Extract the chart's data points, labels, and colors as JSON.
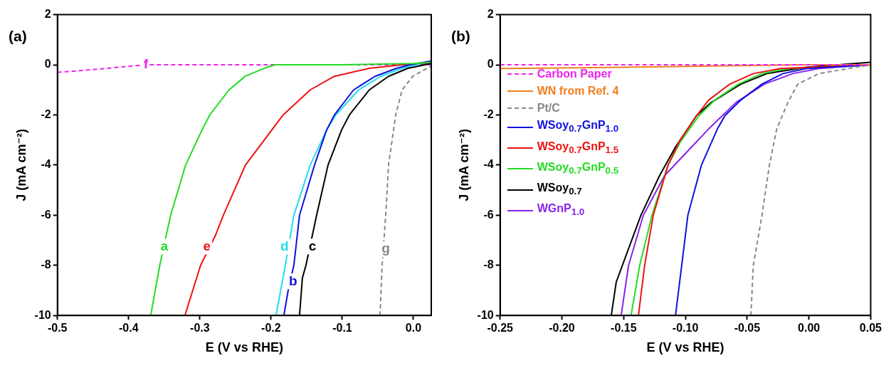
{
  "chart_data": [
    {
      "type": "line",
      "title": "(a)",
      "xlabel": "E (V vs RHE)",
      "ylabel": "J (mA cm⁻²)",
      "marker": "none",
      "xlim": [
        -0.5,
        0.025
      ],
      "ylim": [
        -10,
        2
      ],
      "xticks": [
        {
          "value": -0.5,
          "label": "-0.5"
        },
        {
          "value": -0.4,
          "label": "-0.4"
        },
        {
          "value": -0.3,
          "label": "-0.3"
        },
        {
          "value": -0.2,
          "label": "-0.2"
        },
        {
          "value": -0.1,
          "label": "-0.1"
        },
        {
          "value": 0,
          "label": "0.0"
        }
      ],
      "yticks": [
        2,
        0,
        -2,
        -4,
        -6,
        -8,
        -10
      ],
      "series": [
        {
          "color": "#22dd22",
          "x": [
            -0.369,
            -0.356,
            -0.341,
            -0.32,
            -0.297,
            -0.286,
            -0.259,
            -0.236,
            -0.206,
            -0.194,
            -0.1,
            0,
            0.025
          ],
          "values": [
            -10,
            -7.95,
            -6,
            -4,
            -2.6,
            -2,
            -1,
            -0.45,
            -0.1,
            0,
            0,
            0.05,
            0.1
          ]
        },
        {
          "color": "#1010e0",
          "x": [
            -0.182,
            -0.176,
            -0.168,
            -0.16,
            -0.139,
            -0.122,
            -0.111,
            -0.084,
            -0.054,
            -0.024,
            -0.005,
            0.025
          ],
          "values": [
            -10,
            -9,
            -8,
            -6,
            -4,
            -2.6,
            -2,
            -1,
            -0.46,
            -0.14,
            0,
            0.15
          ]
        },
        {
          "color": "#000000",
          "x": [
            -0.16,
            -0.156,
            -0.151,
            -0.136,
            -0.12,
            -0.101,
            -0.09,
            -0.062,
            -0.035,
            -0.008,
            0.025
          ],
          "values": [
            -10,
            -8.5,
            -8,
            -6,
            -4,
            -2.6,
            -2,
            -1,
            -0.46,
            -0.14,
            0.05
          ]
        },
        {
          "color": "#22ddee",
          "x": [
            -0.193,
            -0.18,
            -0.168,
            -0.145,
            -0.122,
            -0.109,
            -0.077,
            -0.046,
            -0.016,
            0.025
          ],
          "values": [
            -10,
            -8,
            -6,
            -4,
            -2.6,
            -2,
            -1,
            -0.46,
            -0.14,
            0.15
          ]
        },
        {
          "color": "#ee1111",
          "x": [
            -0.321,
            -0.299,
            -0.278,
            -0.267,
            -0.236,
            -0.183,
            -0.145,
            -0.111,
            -0.062,
            -0.016,
            0.025
          ],
          "values": [
            -10,
            -8,
            -6.8,
            -6,
            -4,
            -2,
            -1,
            -0.46,
            -0.14,
            0,
            0.05
          ]
        },
        {
          "color": "#ee22ee",
          "line_style": "dashed",
          "x": [
            -0.5,
            -0.453,
            -0.396,
            -0.376,
            -0.2,
            0,
            0.025
          ],
          "values": [
            -0.3,
            -0.2,
            -0.05,
            0,
            0,
            0,
            0
          ]
        },
        {
          "color": "#888888",
          "line_style": "dashed",
          "x": [
            -0.047,
            -0.044,
            -0.039,
            -0.035,
            -0.025,
            -0.016,
            -0.001,
            0.022,
            0.025
          ],
          "values": [
            -10,
            -8,
            -6,
            -4,
            -2,
            -1,
            -0.46,
            -0.09,
            -0.05
          ]
        }
      ],
      "annotations": [
        {
          "text": "a",
          "x": -0.35,
          "y": -7.25
        },
        {
          "text": "b",
          "x": -0.169,
          "y": -8.64
        },
        {
          "text": "c",
          "x": -0.142,
          "y": -7.25
        },
        {
          "text": "d",
          "x": -0.181,
          "y": -7.25
        },
        {
          "text": "e",
          "x": -0.29,
          "y": -7.25
        },
        {
          "text": "f",
          "x": -0.376,
          "y": 0
        },
        {
          "text": "g",
          "x": -0.039,
          "y": -7.36
        }
      ]
    },
    {
      "type": "line",
      "title": "(b)",
      "xlabel": "E (V vs RHE)",
      "ylabel": "J (mA cm⁻²)",
      "marker": "none",
      "legend": "top left",
      "xlim": [
        -0.25,
        0.05
      ],
      "ylim": [
        -10,
        2
      ],
      "xticks": [
        {
          "value": -0.25,
          "label": "-0.25"
        },
        {
          "value": -0.2,
          "label": "-0.20"
        },
        {
          "value": -0.15,
          "label": "-0.15"
        },
        {
          "value": -0.1,
          "label": "-0.10"
        },
        {
          "value": -0.05,
          "label": "-0.05"
        },
        {
          "value": 0,
          "label": "0.00"
        },
        {
          "value": 0.05,
          "label": "0.05"
        }
      ],
      "yticks": [
        2,
        0,
        -2,
        -4,
        -6,
        -8,
        -10
      ],
      "series": [
        {
          "name": "Carbon Paper",
          "color": "#ee22ee",
          "line_style": "dashed",
          "x": [
            -0.25,
            0,
            0.05
          ],
          "values": [
            0,
            0,
            0
          ]
        },
        {
          "name": "WN from Ref. 4",
          "color": "#f08020",
          "x": [
            -0.25,
            -0.15,
            -0.05,
            0,
            0.05
          ],
          "values": [
            -0.15,
            -0.1,
            -0.03,
            0,
            0
          ]
        },
        {
          "name": "Pt/C",
          "color": "#888888",
          "line_style": "dashed",
          "x": [
            -0.047,
            -0.045,
            -0.038,
            -0.032,
            -0.026,
            -0.017,
            -0.009,
            0.008,
            0.05
          ],
          "values": [
            -10,
            -8,
            -6,
            -4,
            -2.55,
            -1.5,
            -0.77,
            -0.35,
            0
          ]
        },
        {
          "name": "WSoy$_{0.7}$GnP$_{1.0}$",
          "color": "#1010e0",
          "x": [
            -0.108,
            -0.103,
            -0.098,
            -0.087,
            -0.074,
            -0.068,
            -0.055,
            -0.038,
            -0.021,
            -0.002,
            0.05
          ],
          "values": [
            -10,
            -8,
            -6,
            -4,
            -2.55,
            -2.03,
            -1.4,
            -0.77,
            -0.35,
            -0.15,
            0
          ]
        },
        {
          "name": "WSoy$_{0.7}$GnP$_{1.5}$",
          "color": "#ee1111",
          "x": [
            -0.138,
            -0.133,
            -0.126,
            -0.114,
            -0.105,
            -0.091,
            -0.081,
            -0.064,
            -0.045,
            -0.023,
            0.05
          ],
          "values": [
            -10,
            -8,
            -6,
            -4,
            -3.07,
            -2.03,
            -1.4,
            -0.77,
            -0.35,
            -0.15,
            0
          ]
        },
        {
          "name": "WSoy$_{0.7}$GnP$_{0.5}$",
          "color": "#22dd22",
          "x": [
            -0.144,
            -0.137,
            -0.127,
            -0.114,
            -0.104,
            -0.089,
            -0.076,
            -0.057,
            -0.038,
            -0.017,
            0.05
          ],
          "values": [
            -10,
            -8,
            -6,
            -4,
            -3.07,
            -2.03,
            -1.4,
            -0.77,
            -0.35,
            -0.15,
            0
          ]
        },
        {
          "name": "WSoy$_{0.7}$",
          "color": "#000000",
          "x": [
            -0.16,
            -0.156,
            -0.151,
            -0.136,
            -0.121,
            -0.108,
            -0.091,
            -0.079,
            -0.055,
            -0.034,
            -0.002,
            0.05
          ],
          "values": [
            -10,
            -8.67,
            -8,
            -6,
            -4.43,
            -3.28,
            -2.03,
            -1.5,
            -0.77,
            -0.35,
            -0.1,
            0.1
          ]
        },
        {
          "name": "WGnP$_{1.0}$",
          "color": "#8822ee",
          "x": [
            -0.152,
            -0.146,
            -0.134,
            -0.117,
            -0.095,
            -0.081,
            -0.059,
            -0.036,
            -0.013,
            0.008,
            0.05
          ],
          "values": [
            -10,
            -8,
            -6,
            -4.43,
            -3.28,
            -2.55,
            -1.5,
            -0.77,
            -0.35,
            -0.15,
            0
          ]
        }
      ]
    }
  ]
}
